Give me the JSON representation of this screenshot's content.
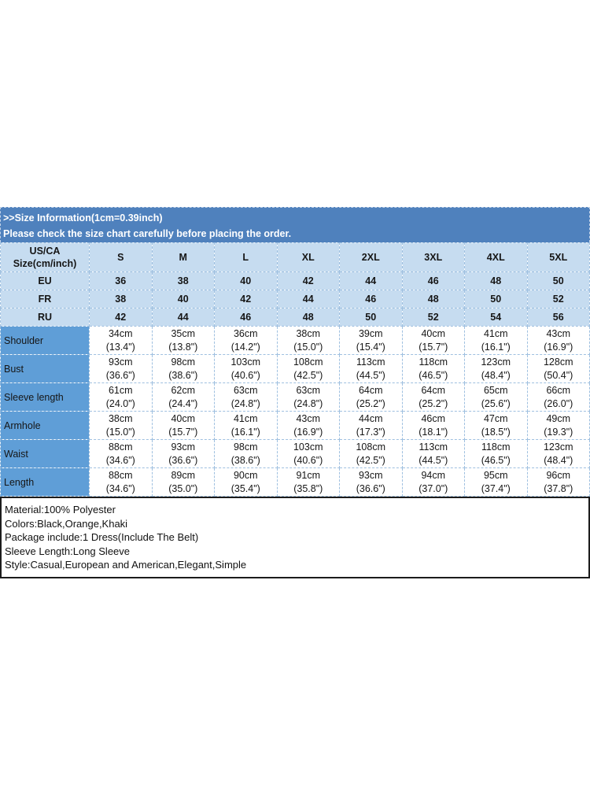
{
  "colors": {
    "banner_bg": "#4f81bd",
    "banner_text": "#ffffff",
    "light_blue_cell": "#c6dcf0",
    "label_column_blue": "#5f9ed7",
    "cell_border": "#9fc0e0",
    "details_border": "#1c1c1c",
    "table_text": "#161616"
  },
  "banner": {
    "line1": ">>Size Information(1cm=0.39inch)",
    "line2": "Please check the size chart carefully before placing the order."
  },
  "table": {
    "corner_header": [
      "US/CA",
      "Size(cm/inch)"
    ],
    "size_columns": [
      "S",
      "M",
      "L",
      "XL",
      "2XL",
      "3XL",
      "4XL",
      "5XL"
    ],
    "region_rows": [
      {
        "label": "EU",
        "values": [
          "36",
          "38",
          "40",
          "42",
          "44",
          "46",
          "48",
          "50"
        ]
      },
      {
        "label": "FR",
        "values": [
          "38",
          "40",
          "42",
          "44",
          "46",
          "48",
          "50",
          "52"
        ]
      },
      {
        "label": "RU",
        "values": [
          "42",
          "44",
          "46",
          "48",
          "50",
          "52",
          "54",
          "56"
        ]
      }
    ],
    "measurement_rows": [
      {
        "label": "Shoulder",
        "cells": [
          {
            "cm": "34cm",
            "in": "(13.4\")"
          },
          {
            "cm": "35cm",
            "in": "(13.8\")"
          },
          {
            "cm": "36cm",
            "in": "(14.2\")"
          },
          {
            "cm": "38cm",
            "in": "(15.0\")"
          },
          {
            "cm": "39cm",
            "in": "(15.4\")"
          },
          {
            "cm": "40cm",
            "in": "(15.7\")"
          },
          {
            "cm": "41cm",
            "in": "(16.1\")"
          },
          {
            "cm": "43cm",
            "in": "(16.9\")"
          }
        ]
      },
      {
        "label": "Bust",
        "cells": [
          {
            "cm": "93cm",
            "in": "(36.6\")"
          },
          {
            "cm": "98cm",
            "in": "(38.6\")"
          },
          {
            "cm": "103cm",
            "in": "(40.6\")"
          },
          {
            "cm": "108cm",
            "in": "(42.5\")"
          },
          {
            "cm": "113cm",
            "in": "(44.5\")"
          },
          {
            "cm": "118cm",
            "in": "(46.5\")"
          },
          {
            "cm": "123cm",
            "in": "(48.4\")"
          },
          {
            "cm": "128cm",
            "in": "(50.4\")"
          }
        ]
      },
      {
        "label": "Sleeve length",
        "cells": [
          {
            "cm": "61cm",
            "in": "(24.0\")"
          },
          {
            "cm": "62cm",
            "in": "(24.4\")"
          },
          {
            "cm": "63cm",
            "in": "(24.8\")"
          },
          {
            "cm": "63cm",
            "in": "(24.8\")"
          },
          {
            "cm": "64cm",
            "in": "(25.2\")"
          },
          {
            "cm": "64cm",
            "in": "(25.2\")"
          },
          {
            "cm": "65cm",
            "in": "(25.6\")"
          },
          {
            "cm": "66cm",
            "in": "(26.0\")"
          }
        ]
      },
      {
        "label": "Armhole",
        "cells": [
          {
            "cm": "38cm",
            "in": "(15.0\")"
          },
          {
            "cm": "40cm",
            "in": "(15.7\")"
          },
          {
            "cm": "41cm",
            "in": "(16.1\")"
          },
          {
            "cm": "43cm",
            "in": "(16.9\")"
          },
          {
            "cm": "44cm",
            "in": "(17.3\")"
          },
          {
            "cm": "46cm",
            "in": "(18.1\")"
          },
          {
            "cm": "47cm",
            "in": "(18.5\")"
          },
          {
            "cm": "49cm",
            "in": "(19.3\")"
          }
        ]
      },
      {
        "label": "Waist",
        "cells": [
          {
            "cm": "88cm",
            "in": "(34.6\")"
          },
          {
            "cm": "93cm",
            "in": "(36.6\")"
          },
          {
            "cm": "98cm",
            "in": "(38.6\")"
          },
          {
            "cm": "103cm",
            "in": "(40.6\")"
          },
          {
            "cm": "108cm",
            "in": "(42.5\")"
          },
          {
            "cm": "113cm",
            "in": "(44.5\")"
          },
          {
            "cm": "118cm",
            "in": "(46.5\")"
          },
          {
            "cm": "123cm",
            "in": "(48.4\")"
          }
        ]
      },
      {
        "label": "Length",
        "cells": [
          {
            "cm": "88cm",
            "in": "(34.6\")"
          },
          {
            "cm": "89cm",
            "in": "(35.0\")"
          },
          {
            "cm": "90cm",
            "in": "(35.4\")"
          },
          {
            "cm": "91cm",
            "in": "(35.8\")"
          },
          {
            "cm": "93cm",
            "in": "(36.6\")"
          },
          {
            "cm": "94cm",
            "in": "(37.0\")"
          },
          {
            "cm": "95cm",
            "in": "(37.4\")"
          },
          {
            "cm": "96cm",
            "in": "(37.8\")"
          }
        ]
      }
    ]
  },
  "details": {
    "lines": [
      "Material:100% Polyester",
      "Colors:Black,Orange,Khaki",
      "Package include:1 Dress(Include The Belt)",
      "Sleeve Length:Long Sleeve",
      "Style:Casual,European and American,Elegant,Simple"
    ]
  }
}
